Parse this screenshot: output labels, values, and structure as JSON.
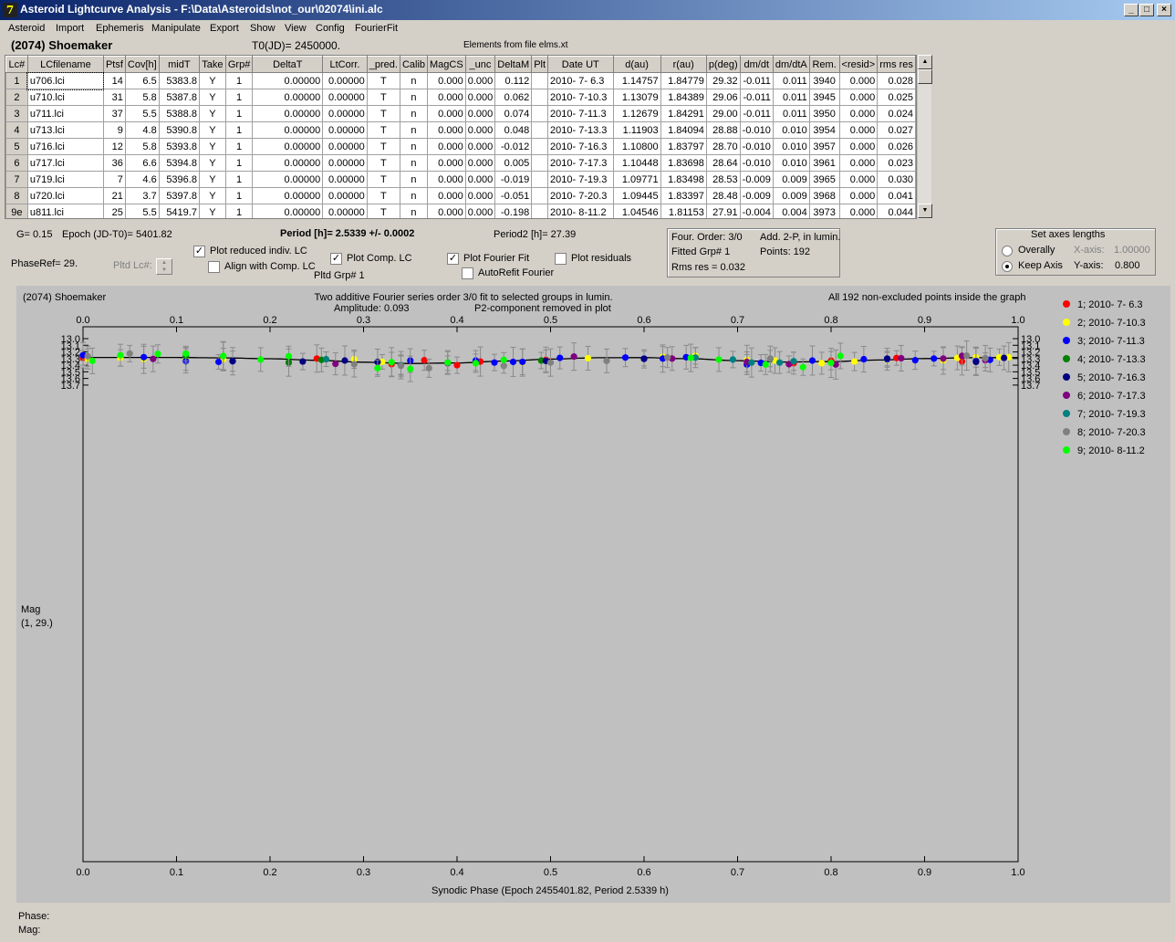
{
  "window": {
    "title": "Asteroid Lightcurve Analysis - F:\\Data\\Asteroids\\not_our\\02074\\ini.alc",
    "controls": [
      "_",
      "□",
      "×"
    ]
  },
  "menu": [
    "Asteroid",
    "Import",
    "Ephemeris",
    "Manipulate",
    "Export",
    "Show",
    "View",
    "Config",
    "FourierFit"
  ],
  "header": {
    "asteroid": "(2074) Shoemaker",
    "t0": "T0(JD)= 2450000.",
    "elements": "Elements from file elms.xt"
  },
  "table": {
    "columns": [
      "Lc#",
      "LCfilename",
      "Ptsf",
      "Cov[h]",
      "midT",
      "Take",
      "Grp#",
      "DeltaT",
      "LtCorr.",
      "_pred.",
      "Calib",
      "MagCS",
      "_unc",
      "DeltaM",
      "Plt",
      "Date UT",
      "d(au)",
      "r(au)",
      "p(deg)",
      "dm/dt",
      "dm/dtA",
      "Rem.",
      "<resid>",
      "rms res"
    ],
    "rows": [
      [
        "1",
        "u706.lci",
        "14",
        "6.5",
        "5383.8",
        "Y",
        "1",
        "0.00000",
        "0.00000",
        "T",
        "n",
        "0.000",
        "0.000",
        "0.112",
        "",
        "2010- 7- 6.3",
        "1.14757",
        "1.84779",
        "29.32",
        "-0.011",
        "0.011",
        "3940",
        "0.000",
        "0.028"
      ],
      [
        "2",
        "u710.lci",
        "31",
        "5.8",
        "5387.8",
        "Y",
        "1",
        "0.00000",
        "0.00000",
        "T",
        "n",
        "0.000",
        "0.000",
        "0.062",
        "",
        "2010- 7-10.3",
        "1.13079",
        "1.84389",
        "29.06",
        "-0.011",
        "0.011",
        "3945",
        "0.000",
        "0.025"
      ],
      [
        "3",
        "u711.lci",
        "37",
        "5.5",
        "5388.8",
        "Y",
        "1",
        "0.00000",
        "0.00000",
        "T",
        "n",
        "0.000",
        "0.000",
        "0.074",
        "",
        "2010- 7-11.3",
        "1.12679",
        "1.84291",
        "29.00",
        "-0.011",
        "0.011",
        "3950",
        "0.000",
        "0.024"
      ],
      [
        "4",
        "u713.lci",
        "9",
        "4.8",
        "5390.8",
        "Y",
        "1",
        "0.00000",
        "0.00000",
        "T",
        "n",
        "0.000",
        "0.000",
        "0.048",
        "",
        "2010- 7-13.3",
        "1.11903",
        "1.84094",
        "28.88",
        "-0.010",
        "0.010",
        "3954",
        "0.000",
        "0.027"
      ],
      [
        "5",
        "u716.lci",
        "12",
        "5.8",
        "5393.8",
        "Y",
        "1",
        "0.00000",
        "0.00000",
        "T",
        "n",
        "0.000",
        "0.000",
        "-0.012",
        "",
        "2010- 7-16.3",
        "1.10800",
        "1.83797",
        "28.70",
        "-0.010",
        "0.010",
        "3957",
        "0.000",
        "0.026"
      ],
      [
        "6",
        "u717.lci",
        "36",
        "6.6",
        "5394.8",
        "Y",
        "1",
        "0.00000",
        "0.00000",
        "T",
        "n",
        "0.000",
        "0.000",
        "0.005",
        "",
        "2010- 7-17.3",
        "1.10448",
        "1.83698",
        "28.64",
        "-0.010",
        "0.010",
        "3961",
        "0.000",
        "0.023"
      ],
      [
        "7",
        "u719.lci",
        "7",
        "4.6",
        "5396.8",
        "Y",
        "1",
        "0.00000",
        "0.00000",
        "T",
        "n",
        "0.000",
        "0.000",
        "-0.019",
        "",
        "2010- 7-19.3",
        "1.09771",
        "1.83498",
        "28.53",
        "-0.009",
        "0.009",
        "3965",
        "0.000",
        "0.030"
      ],
      [
        "8",
        "u720.lci",
        "21",
        "3.7",
        "5397.8",
        "Y",
        "1",
        "0.00000",
        "0.00000",
        "T",
        "n",
        "0.000",
        "0.000",
        "-0.051",
        "",
        "2010- 7-20.3",
        "1.09445",
        "1.83397",
        "28.48",
        "-0.009",
        "0.009",
        "3968",
        "0.000",
        "0.041"
      ],
      [
        "9e",
        "u811.lci",
        "25",
        "5.5",
        "5419.7",
        "Y",
        "1",
        "0.00000",
        "0.00000",
        "T",
        "n",
        "0.000",
        "0.000",
        "-0.198",
        "",
        "2010- 8-11.2",
        "1.04546",
        "1.81153",
        "27.91",
        "-0.004",
        "0.004",
        "3973",
        "0.000",
        "0.044"
      ]
    ]
  },
  "info": {
    "g": "G= 0.15",
    "epoch": "Epoch (JD-T0)= 5401.82",
    "period": "Period [h]= 2.5339 +/- 0.0002",
    "period2": "Period2 [h]= 27.39",
    "phase_ref": "PhaseRef= 29.",
    "pltd_lc": "Pltd Lc#:",
    "pltd_grp": "Pltd Grp#  1"
  },
  "checkboxes": {
    "plot_reduced": {
      "label": "Plot reduced indiv. LC",
      "checked": true
    },
    "align_comp": {
      "label": "Align with Comp. LC",
      "checked": false
    },
    "plot_comp": {
      "label": "Plot Comp. LC",
      "checked": true
    },
    "plot_fourier": {
      "label": "Plot Fourier Fit",
      "checked": true
    },
    "autorefit": {
      "label": "AutoRefit Fourier",
      "checked": false
    },
    "plot_residuals": {
      "label": "Plot residuals",
      "checked": false
    }
  },
  "fourier_box": {
    "order": "Four. Order:  3/0",
    "add": "Add. 2-P, in lumin.",
    "fitted": "Fitted Grp# 1",
    "points": "Points: 192",
    "rms": "Rms res     = 0.032"
  },
  "axes_box": {
    "title": "Set axes lengths",
    "overall": "Overally",
    "keep": "Keep Axis",
    "xaxis_label": "X-axis:",
    "xaxis_value": "1.00000",
    "yaxis_label": "Y-axis:",
    "yaxis_value": "0.800",
    "selected": "keep"
  },
  "plot_header": {
    "name": "(2074) Shoemaker",
    "line1": "Two additive Fourier series order 3/0 fit to selected groups in lumin.",
    "amplitude": "Amplitude: 0.093",
    "p2": "P2-component removed in plot",
    "all_points": "All 192 non-excluded points inside the graph"
  },
  "footer": {
    "phase": "Phase:",
    "mag": "Mag:"
  },
  "chart_data": {
    "type": "scatter",
    "title": "(2074) Shoemaker",
    "xlabel": "Synodic Phase (Epoch 2455401.82, Period 2.5339 h)",
    "ylabel": "Mag",
    "ylabel2": "(1, 29.)",
    "xlim": [
      0.0,
      1.0
    ],
    "ylim": [
      13.0,
      13.8
    ],
    "y_inverted": true,
    "x_ticks": [
      "0.0",
      "0.1",
      "0.2",
      "0.3",
      "0.4",
      "0.5",
      "0.6",
      "0.7",
      "0.8",
      "0.9",
      "1.0"
    ],
    "y_ticks": [
      "13.0",
      "13.1",
      "13.2",
      "13.3",
      "13.4",
      "13.5",
      "13.6",
      "13.7"
    ],
    "fit": {
      "mean": 13.325,
      "amplitude": 0.093,
      "minimum_phase": 0.345,
      "fit_curve_points_phase": [
        0.0,
        0.05,
        0.1,
        0.15,
        0.2,
        0.25,
        0.3,
        0.35,
        0.4,
        0.45,
        0.5,
        0.55,
        0.6,
        0.65,
        0.7,
        0.75,
        0.8,
        0.85,
        0.9,
        0.95,
        1.0
      ],
      "fit_curve_points_mag": [
        13.283,
        13.283,
        13.284,
        13.29,
        13.303,
        13.326,
        13.355,
        13.375,
        13.366,
        13.338,
        13.308,
        13.288,
        13.286,
        13.303,
        13.332,
        13.352,
        13.346,
        13.322,
        13.3,
        13.288,
        13.283
      ]
    },
    "series": [
      {
        "name": "1; 2010- 7- 6.3",
        "color": "#ff0000",
        "x": [
          0.0,
          0.25,
          0.33,
          0.365,
          0.4,
          0.425,
          0.495,
          0.76,
          0.8,
          0.87,
          0.94
        ],
        "y": [
          13.29,
          13.3,
          13.385,
          13.325,
          13.4,
          13.345,
          13.32,
          13.37,
          13.332,
          13.292,
          13.342
        ]
      },
      {
        "name": "2; 2010- 7-10.3",
        "color": "#ffff00",
        "x": [
          0.005,
          0.04,
          0.065,
          0.11,
          0.15,
          0.29,
          0.32,
          0.47,
          0.54,
          0.62,
          0.655,
          0.71,
          0.74,
          0.79,
          0.825,
          0.86,
          0.92,
          0.935,
          0.955,
          0.98,
          0.99
        ],
        "y": [
          13.305,
          13.29,
          13.305,
          13.325,
          13.31,
          13.31,
          13.35,
          13.36,
          13.295,
          13.27,
          13.26,
          13.32,
          13.33,
          13.37,
          13.345,
          13.32,
          13.33,
          13.29,
          13.28,
          13.28,
          13.28
        ]
      },
      {
        "name": "3; 2010- 7-11.3",
        "color": "#0000ff",
        "x": [
          0.0,
          0.065,
          0.11,
          0.145,
          0.16,
          0.35,
          0.42,
          0.44,
          0.46,
          0.47,
          0.51,
          0.58,
          0.6,
          0.62,
          0.645,
          0.71,
          0.725,
          0.78,
          0.835,
          0.86,
          0.89,
          0.91,
          0.955,
          0.97
        ],
        "y": [
          13.25,
          13.28,
          13.34,
          13.35,
          13.34,
          13.33,
          13.33,
          13.36,
          13.35,
          13.35,
          13.29,
          13.285,
          13.3,
          13.3,
          13.28,
          13.39,
          13.365,
          13.33,
          13.31,
          13.31,
          13.325,
          13.3,
          13.335,
          13.32
        ]
      },
      {
        "name": "4; 2010- 7-13.3",
        "color": "#008000",
        "x": [
          0.11,
          0.22,
          0.255,
          0.34,
          0.49
        ],
        "y": [
          13.26,
          13.36,
          13.32,
          13.4,
          13.33
        ]
      },
      {
        "name": "5; 2010- 7-16.3",
        "color": "#000080",
        "x": [
          0.16,
          0.235,
          0.28,
          0.315,
          0.495,
          0.6,
          0.86,
          0.955,
          0.985
        ],
        "y": [
          13.34,
          13.345,
          13.33,
          13.35,
          13.335,
          13.305,
          13.3,
          13.35,
          13.29
        ]
      },
      {
        "name": "6; 2010- 7-17.3",
        "color": "#800080",
        "x": [
          0.075,
          0.27,
          0.34,
          0.39,
          0.525,
          0.63,
          0.71,
          0.755,
          0.805,
          0.875,
          0.92,
          0.94,
          0.965
        ],
        "y": [
          13.305,
          13.38,
          13.4,
          13.37,
          13.27,
          13.3,
          13.35,
          13.385,
          13.39,
          13.295,
          13.3,
          13.26,
          13.325
        ]
      },
      {
        "name": "7; 2010- 7-19.3",
        "color": "#008080",
        "x": [
          0.26,
          0.34,
          0.39,
          0.655,
          0.695,
          0.715,
          0.735,
          0.745,
          0.76
        ],
        "y": [
          13.31,
          13.4,
          13.36,
          13.285,
          13.315,
          13.36,
          13.305,
          13.36,
          13.34
        ]
      },
      {
        "name": "8; 2010- 7-20.3",
        "color": "#808080",
        "x": [
          0.005,
          0.05,
          0.15,
          0.29,
          0.34,
          0.37,
          0.45,
          0.5,
          0.56,
          0.625,
          0.735,
          0.945,
          0.965
        ],
        "y": [
          13.265,
          13.225,
          13.265,
          13.385,
          13.41,
          13.445,
          13.41,
          13.36,
          13.335,
          13.285,
          13.3,
          13.255,
          13.295
        ]
      },
      {
        "name": "9; 2010- 8-11.2",
        "color": "#00ff00",
        "x": [
          0.01,
          0.04,
          0.08,
          0.11,
          0.15,
          0.19,
          0.22,
          0.315,
          0.33,
          0.35,
          0.39,
          0.42,
          0.45,
          0.65,
          0.68,
          0.73,
          0.77,
          0.8,
          0.81
        ],
        "y": [
          13.335,
          13.25,
          13.23,
          13.225,
          13.26,
          13.315,
          13.265,
          13.445,
          13.355,
          13.455,
          13.36,
          13.37,
          13.32,
          13.29,
          13.315,
          13.39,
          13.43,
          13.365,
          13.26
        ]
      }
    ]
  }
}
